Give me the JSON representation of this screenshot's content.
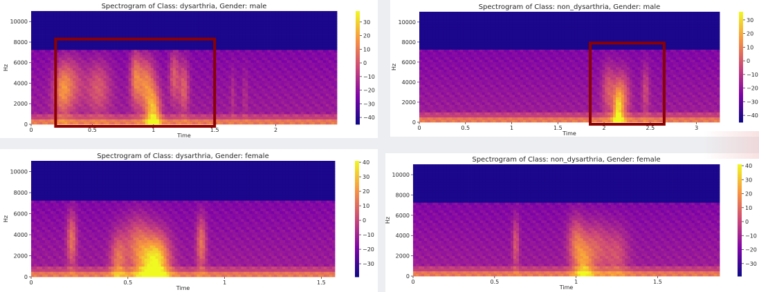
{
  "charts": [
    {
      "title": "Spectrogram of Class: dysarthria, Gender: male",
      "xlabel": "Time",
      "ylabel": "Hz",
      "x_ticks": [
        "0",
        "0.5",
        "1",
        "1.5",
        "2"
      ],
      "y_ticks": [
        "0",
        "2000",
        "4000",
        "6000",
        "8000",
        "10000"
      ],
      "colorbar_ticks": [
        "30",
        "20",
        "10",
        "0",
        "−10",
        "−20",
        "−30",
        "−40"
      ]
    },
    {
      "title": "Spectrogram of Class: non_dysarthria, Gender: male",
      "xlabel": "Time",
      "ylabel": "Hz",
      "x_ticks": [
        "0",
        "0.5",
        "1",
        "1.5",
        "2",
        "2.5",
        "3"
      ],
      "y_ticks": [
        "0",
        "2000",
        "4000",
        "6000",
        "8000",
        "10000"
      ],
      "colorbar_ticks": [
        "30",
        "20",
        "10",
        "0",
        "−10",
        "−20",
        "−30",
        "−40"
      ]
    },
    {
      "title": "Spectrogram of Class: dysarthria, Gender: female",
      "xlabel": "Time",
      "ylabel": "Hz",
      "x_ticks": [
        "0",
        "0.5",
        "1",
        "1.5"
      ],
      "y_ticks": [
        "0",
        "2000",
        "4000",
        "6000",
        "8000",
        "10000"
      ],
      "colorbar_ticks": [
        "40",
        "30",
        "20",
        "10",
        "0",
        "−10",
        "−20",
        "−30"
      ]
    },
    {
      "title": "Spectrogram of Class: non_dysarthria, Gender: female",
      "xlabel": "Time",
      "ylabel": "Hz",
      "x_ticks": [
        "0",
        "0.5",
        "1",
        "1.5"
      ],
      "y_ticks": [
        "0",
        "2000",
        "4000",
        "6000",
        "8000",
        "10000"
      ],
      "colorbar_ticks": [
        "40",
        "30",
        "20",
        "10",
        "0",
        "−10",
        "−20",
        "−30"
      ]
    }
  ],
  "chart_data": [
    {
      "type": "heatmap",
      "title": "Spectrogram of Class: dysarthria, Gender: male",
      "xlabel": "Time",
      "ylabel": "Hz",
      "xlim": [
        0,
        2.5
      ],
      "ylim": [
        0,
        11025
      ],
      "x_ticks": [
        0,
        0.5,
        1,
        1.5,
        2
      ],
      "y_ticks": [
        0,
        2000,
        4000,
        6000,
        8000,
        10000
      ],
      "colorbar": {
        "ticks": [
          30,
          20,
          10,
          0,
          -10,
          -20,
          -30,
          -40
        ],
        "range": [
          -45,
          38
        ],
        "colormap": "plasma"
      },
      "highlight_box": {
        "time": [
          0.2,
          1.5
        ],
        "hz": [
          0,
          8300
        ],
        "color": "#8b0000"
      }
    },
    {
      "type": "heatmap",
      "title": "Spectrogram of Class: non_dysarthria, Gender: male",
      "xlabel": "Time",
      "ylabel": "Hz",
      "xlim": [
        0,
        3.25
      ],
      "ylim": [
        0,
        11025
      ],
      "x_ticks": [
        0,
        0.5,
        1,
        1.5,
        2,
        2.5,
        3
      ],
      "y_ticks": [
        0,
        2000,
        4000,
        6000,
        8000,
        10000
      ],
      "colorbar": {
        "ticks": [
          30,
          20,
          10,
          0,
          -10,
          -20,
          -30,
          -40
        ],
        "range": [
          -45,
          36
        ],
        "colormap": "plasma"
      },
      "highlight_box": {
        "time": [
          1.85,
          2.65
        ],
        "hz": [
          0,
          7900
        ],
        "color": "#8b0000"
      }
    },
    {
      "type": "heatmap",
      "title": "Spectrogram of Class: dysarthria, Gender: female",
      "xlabel": "Time",
      "ylabel": "Hz",
      "xlim": [
        0,
        1.57
      ],
      "ylim": [
        0,
        11025
      ],
      "x_ticks": [
        0,
        0.5,
        1,
        1.5
      ],
      "y_ticks": [
        0,
        2000,
        4000,
        6000,
        8000,
        10000
      ],
      "colorbar": {
        "ticks": [
          40,
          30,
          20,
          10,
          0,
          -10,
          -20,
          -30
        ],
        "range": [
          -39,
          41
        ],
        "colormap": "plasma"
      }
    },
    {
      "type": "heatmap",
      "title": "Spectrogram of Class: non_dysarthria, Gender: female",
      "xlabel": "Time",
      "ylabel": "Hz",
      "xlim": [
        0,
        1.88
      ],
      "ylim": [
        0,
        11025
      ],
      "x_ticks": [
        0,
        0.5,
        1,
        1.5
      ],
      "y_ticks": [
        0,
        2000,
        4000,
        6000,
        8000,
        10000
      ],
      "colorbar": {
        "ticks": [
          40,
          30,
          20,
          10,
          0,
          -10,
          -20,
          -30
        ],
        "range": [
          -39,
          41
        ],
        "colormap": "plasma"
      }
    }
  ]
}
